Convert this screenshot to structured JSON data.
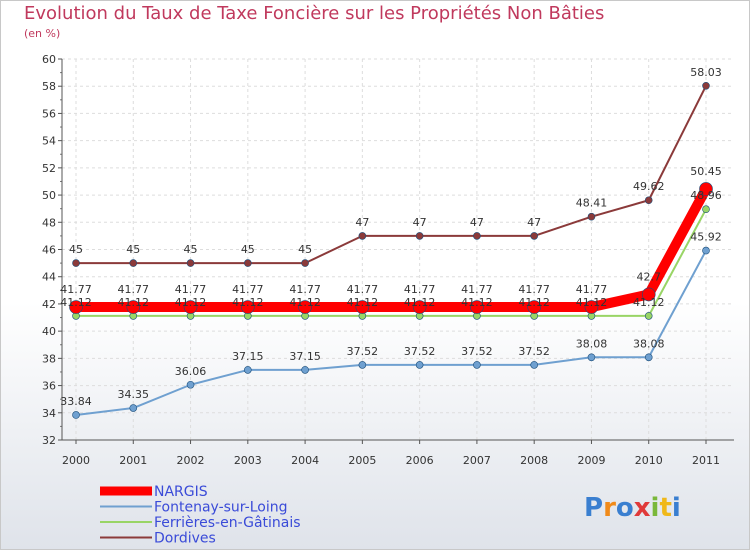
{
  "chart_data": {
    "type": "line",
    "title": "Evolution du Taux de Taxe Foncière sur les Propriétés Non Bâties",
    "subtitle": "(en %)",
    "xlabel": "",
    "ylabel": "",
    "x": [
      "2000",
      "2001",
      "2002",
      "2003",
      "2004",
      "2005",
      "2006",
      "2007",
      "2008",
      "2009",
      "2010",
      "2011"
    ],
    "ylim": [
      32,
      60
    ],
    "yticks": [
      "32",
      "34",
      "36",
      "38",
      "40",
      "42",
      "44",
      "46",
      "48",
      "50",
      "52",
      "54",
      "56",
      "58",
      "60"
    ],
    "series": [
      {
        "name": "NARGIS",
        "color": "#ff0000",
        "values": [
          41.77,
          41.77,
          41.77,
          41.77,
          41.77,
          41.77,
          41.77,
          41.77,
          41.77,
          41.77,
          42.7,
          50.45
        ],
        "labels": [
          "41.77",
          "41.77",
          "41.77",
          "41.77",
          "41.77",
          "41.77",
          "41.77",
          "41.77",
          "41.77",
          "41.77",
          "42.7",
          "50.45"
        ]
      },
      {
        "name": "Fontenay-sur-Loing",
        "color": "#6fa0d0",
        "values": [
          33.84,
          34.35,
          36.06,
          37.15,
          37.15,
          37.52,
          37.52,
          37.52,
          37.52,
          38.08,
          38.08,
          45.92
        ],
        "labels": [
          "33.84",
          "34.35",
          "36.06",
          "37.15",
          "37.15",
          "37.52",
          "37.52",
          "37.52",
          "37.52",
          "38.08",
          "38.08",
          "45.92"
        ]
      },
      {
        "name": "Ferrières-en-Gâtinais",
        "color": "#99d566",
        "values": [
          41.12,
          41.12,
          41.12,
          41.12,
          41.12,
          41.12,
          41.12,
          41.12,
          41.12,
          41.12,
          41.12,
          48.96
        ],
        "labels": [
          "41.12",
          "41.12",
          "41.12",
          "41.12",
          "41.12",
          "41.12",
          "41.12",
          "41.12",
          "41.12",
          "41.12",
          "41.12",
          "48.96"
        ]
      },
      {
        "name": "Dordives",
        "color": "#8b3a3a",
        "values": [
          45,
          45,
          45,
          45,
          45,
          47,
          47,
          47,
          47,
          48.41,
          49.62,
          58.03
        ],
        "labels": [
          "45",
          "45",
          "45",
          "45",
          "45",
          "47",
          "47",
          "47",
          "47",
          "48.41",
          "49.62",
          "58.03"
        ]
      }
    ],
    "legend_position": "bottom-left"
  },
  "logo": {
    "text": "Proxiti"
  }
}
